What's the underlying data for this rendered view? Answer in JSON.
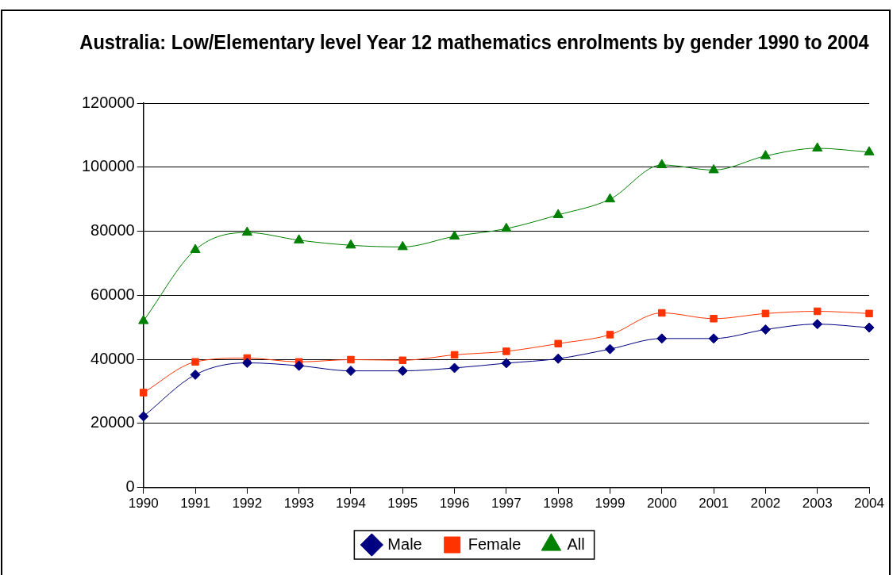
{
  "chart_data": {
    "type": "line",
    "title": "Australia: Low/Elementary level Year 12 mathematics enrolments by gender 1990 to 2004",
    "categories": [
      "1990",
      "1991",
      "1992",
      "1993",
      "1994",
      "1995",
      "1996",
      "1997",
      "1998",
      "1999",
      "2000",
      "2001",
      "2002",
      "2003",
      "2004"
    ],
    "series": [
      {
        "name": "Male",
        "color": "#000080",
        "marker": "diamond",
        "values": [
          22200,
          35200,
          38900,
          38000,
          36400,
          36400,
          37300,
          38800,
          40200,
          43200,
          46500,
          46500,
          49300,
          51000,
          49900
        ]
      },
      {
        "name": "Female",
        "color": "#ff3300",
        "marker": "square",
        "values": [
          29600,
          39200,
          40400,
          39200,
          39900,
          39700,
          41400,
          42500,
          44900,
          47700,
          54500,
          52700,
          54300,
          55000,
          54300
        ]
      },
      {
        "name": "All",
        "color": "#008000",
        "marker": "triangle",
        "values": [
          52000,
          74200,
          79600,
          77200,
          75600,
          75100,
          78400,
          80800,
          85100,
          90000,
          100700,
          99100,
          103500,
          105900,
          104700
        ]
      }
    ],
    "ylim": [
      0,
      120000
    ],
    "yticks": [
      0,
      20000,
      40000,
      60000,
      80000,
      100000,
      120000
    ],
    "grid": "y",
    "legend": "bottom",
    "line_style": "solid"
  }
}
